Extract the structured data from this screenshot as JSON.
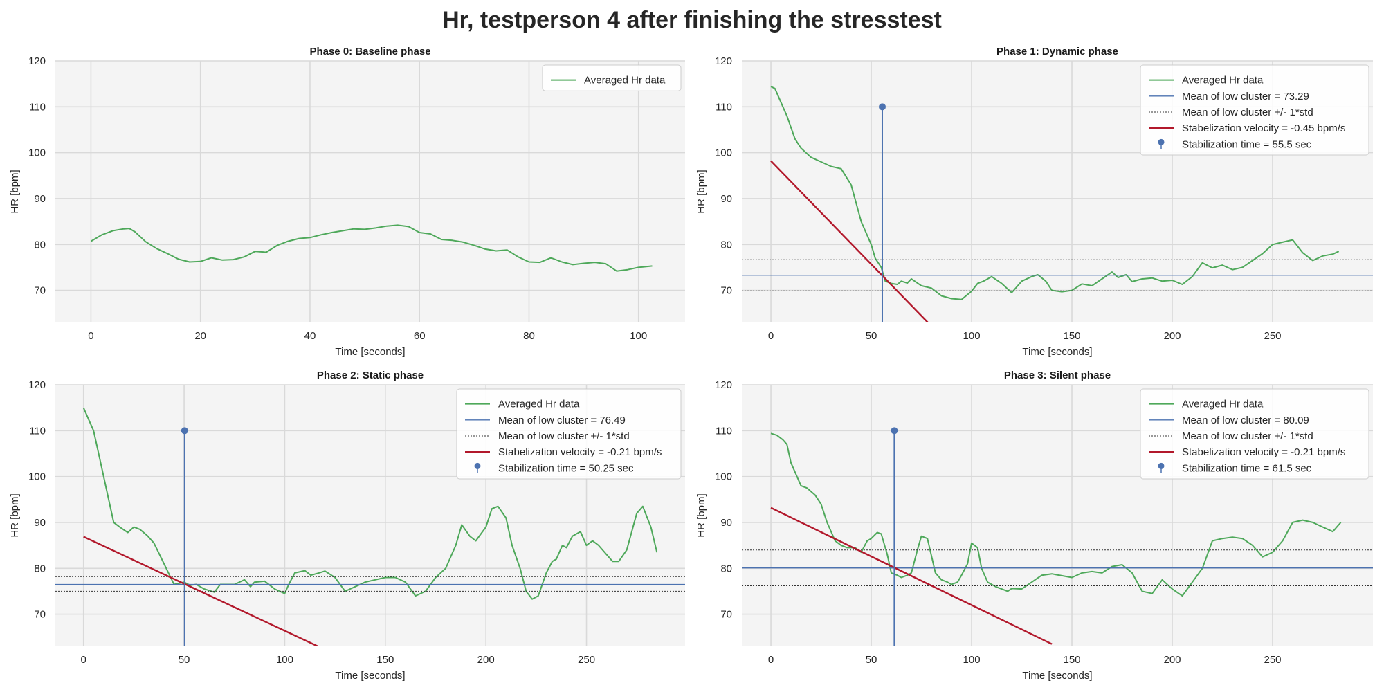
{
  "figure": {
    "title": "Hr, testperson 4 after finishing the stresstest"
  },
  "chart_data": [
    {
      "type": "line",
      "title": "Phase 0: Baseline phase",
      "xlabel": "Time [seconds]",
      "ylabel": "HR [bpm]",
      "xlim": [
        -6.5,
        108.5
      ],
      "ylim": [
        63,
        120
      ],
      "xticks": [
        0,
        20,
        40,
        60,
        80,
        100
      ],
      "yticks": [
        70,
        80,
        90,
        100,
        110,
        120
      ],
      "grid": true,
      "legend_position": "top-right",
      "series": [
        {
          "name": "Averaged Hr data",
          "color": "#4ea85a",
          "x": [
            0,
            2,
            4,
            6,
            7,
            8,
            10,
            12,
            14,
            16,
            18,
            20,
            22,
            24,
            26,
            28,
            30,
            32,
            34,
            36,
            38,
            40,
            42,
            44,
            46,
            48,
            50,
            52,
            54,
            56,
            58,
            60,
            62,
            64,
            66,
            68,
            70,
            72,
            74,
            76,
            78,
            80,
            82,
            84,
            86,
            88,
            90,
            92,
            94,
            96,
            98,
            100,
            102.5
          ],
          "y": [
            80.7,
            82.1,
            83.0,
            83.4,
            83.5,
            82.8,
            80.6,
            79.1,
            78.0,
            76.8,
            76.2,
            76.3,
            77.1,
            76.6,
            76.7,
            77.3,
            78.5,
            78.3,
            79.8,
            80.7,
            81.3,
            81.5,
            82.1,
            82.6,
            83.0,
            83.4,
            83.3,
            83.6,
            84.0,
            84.2,
            83.9,
            82.6,
            82.3,
            81.1,
            80.9,
            80.5,
            79.8,
            79.0,
            78.6,
            78.8,
            77.3,
            76.2,
            76.1,
            77.1,
            76.2,
            75.6,
            75.9,
            76.1,
            75.8,
            74.2,
            74.5,
            75.0,
            75.3
          ]
        }
      ]
    },
    {
      "type": "line",
      "title": "Phase 1: Dynamic phase",
      "xlabel": "Time [seconds]",
      "ylabel": "HR [bpm]",
      "xlim": [
        -14.5,
        300
      ],
      "ylim": [
        63,
        120
      ],
      "xticks": [
        0,
        50,
        100,
        150,
        200,
        250
      ],
      "yticks": [
        70,
        80,
        90,
        100,
        110,
        120
      ],
      "grid": true,
      "legend_position": "top-right",
      "series": [
        {
          "name": "Averaged Hr data",
          "color": "#4ea85a",
          "x": [
            0,
            2,
            5,
            8,
            12,
            15,
            20,
            25,
            30,
            35,
            40,
            45,
            50,
            52,
            55,
            57,
            60,
            63,
            65,
            68,
            70,
            75,
            80,
            85,
            90,
            95,
            100,
            103,
            106,
            110,
            115,
            120,
            125,
            130,
            133,
            137,
            140,
            145,
            150,
            155,
            160,
            165,
            170,
            173,
            177,
            180,
            185,
            190,
            195,
            200,
            205,
            210,
            215,
            220,
            225,
            230,
            235,
            240,
            245,
            250,
            255,
            260,
            265,
            270,
            275,
            280,
            283
          ],
          "y": [
            114.4,
            114,
            111,
            108,
            103,
            101,
            99,
            98,
            97,
            96.5,
            93,
            85,
            80,
            77,
            75,
            72,
            71.5,
            71.3,
            72,
            71.6,
            72.5,
            71,
            70.5,
            68.8,
            68.2,
            68,
            69.8,
            71.5,
            72,
            73,
            71.5,
            69.5,
            72,
            73,
            73.4,
            72,
            70,
            69.7,
            70,
            71.4,
            71,
            72.5,
            74,
            72.8,
            73.4,
            71.9,
            72.5,
            72.7,
            72,
            72.2,
            71.3,
            73,
            76,
            74.9,
            75.5,
            74.5,
            75,
            76.5,
            78,
            80,
            80.5,
            81,
            78.2,
            76.5,
            77.5,
            77.9,
            78.5
          ]
        },
        {
          "name": "Mean of low cluster = 73.29",
          "color": "#4c72b0",
          "y": 73.29
        },
        {
          "name": "Mean of low cluster +/- 1*std",
          "color": "#333333",
          "y": [
            69.9,
            76.68
          ]
        },
        {
          "name": "Stabelization velocity = -0.45 bpm/s",
          "color": "#b2182b",
          "x": [
            0,
            78.2
          ],
          "y": [
            98.2,
            63
          ]
        },
        {
          "name": "Stabilization time = 55.5 sec",
          "color": "#4c72b0",
          "x": [
            55.5
          ],
          "y": [
            110
          ]
        }
      ]
    },
    {
      "type": "line",
      "title": "Phase 2: Static phase",
      "xlabel": "Time [seconds]",
      "ylabel": "HR [bpm]",
      "xlim": [
        -14,
        299
      ],
      "ylim": [
        63,
        120
      ],
      "xticks": [
        0,
        50,
        100,
        150,
        200,
        250
      ],
      "yticks": [
        70,
        80,
        90,
        100,
        110,
        120
      ],
      "grid": true,
      "legend_position": "top-right",
      "series": [
        {
          "name": "Averaged Hr data",
          "color": "#4ea85a",
          "x": [
            0,
            2,
            5,
            8,
            12,
            15,
            18,
            22,
            25,
            28,
            32,
            35,
            40,
            45,
            50,
            53,
            56,
            60,
            65,
            68,
            70,
            75,
            80,
            83,
            85,
            90,
            95,
            100,
            102,
            105,
            110,
            113,
            117,
            120,
            125,
            130,
            135,
            140,
            145,
            150,
            155,
            160,
            165,
            170,
            175,
            180,
            185,
            188,
            192,
            195,
            200,
            203,
            206,
            210,
            213,
            217,
            220,
            223,
            226,
            230,
            233,
            235,
            238,
            240,
            243,
            247,
            250,
            253,
            256,
            260,
            263,
            266,
            270,
            275,
            278,
            282,
            285
          ],
          "y": [
            115,
            113,
            110,
            104,
            96,
            90,
            89,
            87.8,
            89,
            88.5,
            87,
            85.5,
            81,
            76.5,
            77,
            76.3,
            76.5,
            75.5,
            74.8,
            76.5,
            76.5,
            76.5,
            77.5,
            76,
            77,
            77.2,
            75.5,
            74.5,
            76.5,
            79,
            79.5,
            78.5,
            79,
            79.4,
            78,
            75,
            76,
            77,
            77.5,
            78,
            78,
            77,
            74,
            75,
            78,
            80,
            85,
            89.5,
            87,
            86,
            89,
            93,
            93.5,
            91,
            85,
            80,
            75,
            73.3,
            74,
            79,
            81.5,
            82,
            85,
            84.5,
            87,
            88,
            85,
            86,
            85,
            83,
            81.5,
            81.5,
            84,
            92,
            93.5,
            89,
            83.5
          ]
        },
        {
          "name": "Mean of low cluster = 76.49",
          "color": "#4c72b0",
          "y": 76.49
        },
        {
          "name": "Mean of low cluster +/- 1*std",
          "color": "#333333",
          "y": [
            75.0,
            78.2
          ]
        },
        {
          "name": "Stabelization velocity = -0.21 bpm/s",
          "color": "#b2182b",
          "x": [
            0,
            116.5
          ],
          "y": [
            86.9,
            63
          ]
        },
        {
          "name": "Stabilization time = 50.25 sec",
          "color": "#4c72b0",
          "x": [
            50.25
          ],
          "y": [
            110
          ]
        }
      ]
    },
    {
      "type": "line",
      "title": "Phase 3: Silent phase",
      "xlabel": "Time [seconds]",
      "ylabel": "HR [bpm]",
      "xlim": [
        -14.5,
        300
      ],
      "ylim": [
        63,
        120
      ],
      "xticks": [
        0,
        50,
        100,
        150,
        200,
        250
      ],
      "yticks": [
        70,
        80,
        90,
        100,
        110,
        120
      ],
      "grid": true,
      "legend_position": "top-right",
      "series": [
        {
          "name": "Averaged Hr data",
          "color": "#4ea85a",
          "x": [
            0,
            3,
            6,
            8,
            10,
            13,
            15,
            18,
            22,
            25,
            28,
            32,
            35,
            38,
            42,
            45,
            48,
            50,
            53,
            55,
            58,
            60,
            63,
            65,
            68,
            70,
            73,
            75,
            78,
            82,
            85,
            88,
            90,
            93,
            95,
            98,
            100,
            103,
            105,
            108,
            112,
            115,
            118,
            120,
            125,
            130,
            135,
            140,
            145,
            150,
            155,
            160,
            165,
            170,
            175,
            180,
            185,
            190,
            195,
            200,
            205,
            210,
            215,
            220,
            225,
            230,
            235,
            240,
            245,
            250,
            255,
            260,
            265,
            270,
            275,
            280,
            284
          ],
          "y": [
            109.4,
            109,
            108,
            107,
            103,
            100,
            98,
            97.5,
            96,
            94,
            90,
            86,
            85,
            84.5,
            84.5,
            83.5,
            86,
            86.5,
            87.8,
            87.5,
            83,
            79,
            78.5,
            78,
            78.5,
            79,
            84,
            87,
            86.5,
            79,
            77.5,
            77,
            76.5,
            77,
            78.5,
            81,
            85.5,
            84.5,
            80,
            77,
            76,
            75.5,
            75,
            75.6,
            75.5,
            77,
            78.5,
            78.8,
            78.4,
            78,
            79,
            79.3,
            79,
            80.4,
            80.8,
            79,
            75,
            74.5,
            77.5,
            75.5,
            74,
            77,
            80,
            86,
            86.5,
            86.8,
            86.5,
            85,
            82.5,
            83.5,
            86,
            90,
            90.5,
            90,
            89,
            88,
            90
          ]
        },
        {
          "name": "Mean of low cluster = 80.09",
          "color": "#4c72b0",
          "y": 80.09
        },
        {
          "name": "Mean of low cluster +/- 1*std",
          "color": "#333333",
          "y": [
            76.2,
            84.0
          ]
        },
        {
          "name": "Stabelization velocity = -0.21 bpm/s",
          "color": "#b2182b",
          "x": [
            0,
            140
          ],
          "y": [
            93.2,
            63.5
          ]
        },
        {
          "name": "Stabilization time = 61.5 sec",
          "color": "#4c72b0",
          "x": [
            61.5
          ],
          "y": [
            110
          ]
        }
      ]
    }
  ]
}
